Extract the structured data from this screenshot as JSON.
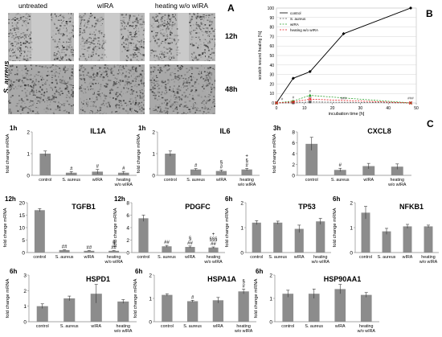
{
  "panel_letters": {
    "A": "A",
    "B": "B",
    "C": "C"
  },
  "microscopy": {
    "columns": [
      "untreated",
      "wIRA",
      "heating w/o wIRA"
    ],
    "rows": [
      "12h",
      "48h"
    ],
    "organism": "S. aureus"
  },
  "chart_data": [
    {
      "type": "line",
      "panel": "B",
      "xlabel": "incubation time [h]",
      "ylabel": "scratch wound healing [%]",
      "xlim": [
        0,
        50
      ],
      "ylim": [
        0,
        100
      ],
      "xticks": [
        0,
        10,
        20,
        30,
        40,
        50
      ],
      "yticks": [
        0,
        10,
        20,
        30,
        40,
        50,
        60,
        70,
        80,
        90,
        100
      ],
      "legend_position": "top-left",
      "series": [
        {
          "name": "control",
          "color": "#000000",
          "marker": "diamond",
          "dash": "solid",
          "x": [
            0,
            6,
            12,
            24,
            48
          ],
          "y": [
            0,
            26,
            33,
            73,
            100
          ]
        },
        {
          "name": "S. aureus",
          "color": "#555555",
          "marker": "square",
          "dash": "dash",
          "x": [
            0,
            6,
            12,
            48
          ],
          "y": [
            0,
            0,
            1,
            0
          ]
        },
        {
          "name": "wIRA",
          "color": "#2ca02c",
          "marker": "triangle",
          "dash": "dash",
          "x": [
            0,
            6,
            12,
            48
          ],
          "y": [
            0,
            2,
            8,
            0
          ]
        },
        {
          "name": "heating w/o wIRA",
          "color": "#e41a1c",
          "marker": "x",
          "dash": "dash",
          "x": [
            0,
            6,
            12,
            48
          ],
          "y": [
            0,
            1,
            4,
            0
          ]
        }
      ],
      "annotations": [
        {
          "x": 2,
          "y": 2,
          "text": "#"
        },
        {
          "x": 6,
          "y": 4,
          "text": "#"
        },
        {
          "x": 12,
          "y": 4,
          "text": "#"
        },
        {
          "x": 12,
          "y": 10,
          "text": "#"
        },
        {
          "x": 24,
          "y": 3,
          "text": "###"
        },
        {
          "x": 48,
          "y": 3,
          "text": "###"
        }
      ]
    },
    {
      "type": "bar",
      "panel": "C",
      "time": "1h",
      "title": "IL1A",
      "ylabel": "fold change mRNA",
      "ylim": [
        0,
        2
      ],
      "yticks": [
        0,
        1,
        2
      ],
      "categories": [
        "control",
        "S. aureus",
        "wIRA",
        "heating w/o wIRA"
      ],
      "values": [
        1.0,
        0.12,
        0.17,
        0.12
      ],
      "errors": [
        0.12,
        0.05,
        0.1,
        0.06
      ],
      "annotations": [
        "",
        "#",
        "#",
        "#"
      ]
    },
    {
      "type": "bar",
      "panel": "C",
      "time": "1h",
      "title": "IL6",
      "ylabel": "fold change mRNA",
      "ylim": [
        0,
        2
      ],
      "yticks": [
        0,
        1,
        2
      ],
      "categories": [
        "control",
        "S. aureus",
        "wIRA",
        "heating w/o wIRA"
      ],
      "values": [
        1.0,
        0.27,
        0.2,
        0.27
      ],
      "errors": [
        0.12,
        0.04,
        0.04,
        0.05
      ],
      "annotations": [
        "",
        "#",
        "§\n#",
        "+\n§\n#"
      ]
    },
    {
      "type": "bar",
      "panel": "C",
      "time": "3h",
      "title": "CXCL8",
      "ylabel": "fold change mRNA",
      "ylim": [
        0,
        8
      ],
      "yticks": [
        0,
        2,
        4,
        6,
        8
      ],
      "categories": [
        "control",
        "S. aureus",
        "wIRA",
        "heating w/o wIRA"
      ],
      "values": [
        5.8,
        1.0,
        1.7,
        1.6
      ],
      "errors": [
        1.2,
        0.3,
        0.5,
        0.5
      ],
      "annotations": [
        "",
        "#",
        "",
        ""
      ]
    },
    {
      "type": "bar",
      "panel": "C",
      "time": "12h",
      "title": "TGFB1",
      "ylabel": "fold change mRNA",
      "ylim": [
        0,
        20
      ],
      "yticks": [
        0,
        5,
        10,
        15,
        20
      ],
      "categories": [
        "control",
        "S. aureus",
        "wIRA",
        "heating w/o wIRA"
      ],
      "values": [
        17.0,
        1.0,
        0.7,
        0.7
      ],
      "errors": [
        0.6,
        0.1,
        0.1,
        0.1
      ],
      "annotations": [
        "",
        "##",
        "##",
        "§\n##"
      ]
    },
    {
      "type": "bar",
      "panel": "C",
      "time": "12h",
      "title": "PDGFC",
      "ylabel": "fold change mRNA",
      "ylim": [
        0,
        8
      ],
      "yticks": [
        0,
        2,
        4,
        6,
        8
      ],
      "categories": [
        "control",
        "S. aureus",
        "wIRA",
        "heating w/o wIRA"
      ],
      "values": [
        5.5,
        1.0,
        0.9,
        0.8
      ],
      "errors": [
        0.5,
        0.15,
        0.15,
        0.1
      ],
      "annotations": [
        "",
        "##",
        "§\n##",
        "+\n§§§\n##"
      ]
    },
    {
      "type": "bar",
      "panel": "C",
      "time": "6h",
      "title": "TP53",
      "ylabel": "fold change mRNA",
      "ylim": [
        0,
        2
      ],
      "yticks": [
        0,
        1,
        2
      ],
      "categories": [
        "control",
        "S. aureus",
        "wIRA",
        "heating w/o wIRA"
      ],
      "values": [
        1.2,
        1.2,
        0.95,
        1.25
      ],
      "errors": [
        0.08,
        0.06,
        0.15,
        0.12
      ],
      "annotations": [
        "",
        "",
        "",
        ""
      ]
    },
    {
      "type": "bar",
      "panel": "C",
      "time": "6h",
      "title": "NFKB1",
      "ylabel": "fold change mRNA",
      "ylim": [
        0,
        2
      ],
      "yticks": [
        0,
        1,
        2
      ],
      "categories": [
        "control",
        "S. aureus",
        "wIRA",
        "heating w/o wIRA"
      ],
      "values": [
        1.6,
        0.85,
        1.05,
        1.05
      ],
      "errors": [
        0.25,
        0.12,
        0.08,
        0.05
      ],
      "annotations": [
        "",
        "",
        "",
        ""
      ]
    },
    {
      "type": "bar",
      "panel": "C",
      "time": "6h",
      "title": "HSPD1",
      "ylabel": "fold change mRNA",
      "ylim": [
        0,
        3
      ],
      "yticks": [
        0,
        1,
        2,
        3
      ],
      "categories": [
        "control",
        "S. aureus",
        "wIRA",
        "heating w/o wIRA"
      ],
      "values": [
        1.0,
        1.5,
        1.8,
        1.3
      ],
      "errors": [
        0.15,
        0.15,
        0.6,
        0.12
      ],
      "annotations": [
        "",
        "",
        "",
        ""
      ]
    },
    {
      "type": "bar",
      "panel": "C",
      "time": "6h",
      "title": "HSPA1A",
      "ylabel": "fold change mRNA",
      "ylim": [
        0,
        2
      ],
      "yticks": [
        0,
        1,
        2
      ],
      "categories": [
        "control",
        "S. aureus",
        "wIRA",
        "heating w/o wIRA"
      ],
      "values": [
        1.15,
        0.88,
        0.92,
        1.3
      ],
      "errors": [
        0.05,
        0.04,
        0.12,
        0.1
      ],
      "annotations": [
        "",
        "#",
        "",
        "§\n#"
      ]
    },
    {
      "type": "bar",
      "panel": "C",
      "time": "6h",
      "title": "HSP90AA1",
      "ylabel": "fold change mRNA",
      "ylim": [
        0,
        2
      ],
      "yticks": [
        0,
        1,
        2
      ],
      "categories": [
        "control",
        "S. aureus",
        "wIRA",
        "heating w/o wIRA"
      ],
      "values": [
        1.2,
        1.2,
        1.4,
        1.15
      ],
      "errors": [
        0.15,
        0.2,
        0.2,
        0.1
      ],
      "annotations": [
        "",
        "",
        "",
        ""
      ]
    }
  ]
}
